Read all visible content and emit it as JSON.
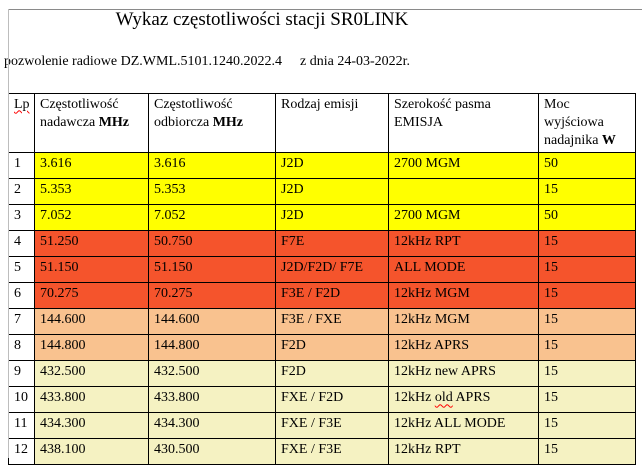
{
  "document": {
    "title": "Wykaz częstotliwości stacji SR0LINK",
    "permit_text": "pozwolenie radiowe DZ.WML.5101.1240.2022.4",
    "permit_date": "z dnia 24-03-2022r."
  },
  "table": {
    "headers": [
      {
        "text": "Lp",
        "bold": "",
        "misspelled": true
      },
      {
        "text": "Częstotliwość nadawcza",
        "bold": "MHz"
      },
      {
        "text": "Częstotliwość odbiorcza",
        "bold": "MHz"
      },
      {
        "text": "Rodzaj emisji",
        "bold": ""
      },
      {
        "text": "Szerokość pasma EMISJA",
        "bold": ""
      },
      {
        "text": "Moc wyjściowa nadajnika",
        "bold": "W"
      }
    ],
    "rows": [
      {
        "lp": "1",
        "tx": "3.616",
        "rx": "3.616",
        "emission": "J2D",
        "bandwidth": "2700 MGM",
        "power": "50",
        "bg": "#FFFF00"
      },
      {
        "lp": "2",
        "tx": "5.353",
        "rx": "5.353",
        "emission": "J2D",
        "bandwidth": "",
        "power": "15",
        "bg": "#FFFF00"
      },
      {
        "lp": "3",
        "tx": "7.052",
        "rx": "7.052",
        "emission": "J2D",
        "bandwidth": "2700 MGM",
        "power": "50",
        "bg": "#FFFF00"
      },
      {
        "lp": "4",
        "tx": "51.250",
        "rx": "50.750",
        "emission": "F7E",
        "bandwidth": "12kHz RPT",
        "power": "15",
        "bg": "#F5542C"
      },
      {
        "lp": "5",
        "tx": "51.150",
        "rx": "51.150",
        "emission": "J2D/F2D/ F7E",
        "bandwidth": "ALL MODE",
        "power": "15",
        "bg": "#F5542C"
      },
      {
        "lp": "6",
        "tx": "70.275",
        "rx": "70.275",
        "emission": "F3E / F2D",
        "bandwidth": "12kHz MGM",
        "power": "15",
        "bg": "#F5542C"
      },
      {
        "lp": "7",
        "tx": "144.600",
        "rx": "144.600",
        "emission": "F3E / FXE",
        "bandwidth": "12kHz MGM",
        "power": "15",
        "bg": "#F9C28F"
      },
      {
        "lp": "8",
        "tx": "144.800",
        "rx": "144.800",
        "emission": "F2D",
        "bandwidth": "12kHz APRS",
        "power": "15",
        "bg": "#F9C28F"
      },
      {
        "lp": "9",
        "tx": "432.500",
        "rx": "432.500",
        "emission": "F2D",
        "bandwidth": "12kHz new APRS",
        "power": "15",
        "bg": "#F5F2C2"
      },
      {
        "lp": "10",
        "tx": "433.800",
        "rx": "433.800",
        "emission": "FXE / F2D",
        "bandwidth": "12kHz old APRS",
        "power": "15",
        "bg": "#F5F2C2",
        "misspelled_word": "old"
      },
      {
        "lp": "11",
        "tx": "434.300",
        "rx": "434.300",
        "emission": "FXE / F3E",
        "bandwidth": "12kHz ALL MODE",
        "power": "15",
        "bg": "#F5F2C2"
      },
      {
        "lp": "12",
        "tx": "438.100",
        "rx": "430.500",
        "emission": "FXE / F3E",
        "bandwidth": "12kHz RPT",
        "power": "15",
        "bg": "#F5F2C2"
      }
    ],
    "column_keys": [
      "lp",
      "tx",
      "rx",
      "emission",
      "bandwidth",
      "power"
    ]
  },
  "colors": {
    "row_yellow": "#FFFF00",
    "row_orange": "#F5542C",
    "row_peach": "#F9C28F",
    "row_pale_yellow": "#F5F2C2",
    "border": "#000000",
    "spellcheck": "#FF0000"
  }
}
